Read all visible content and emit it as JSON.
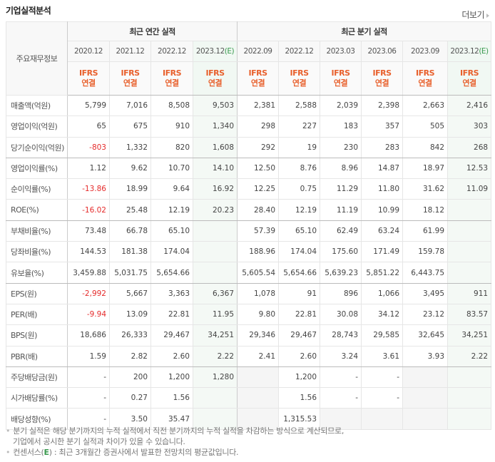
{
  "header": {
    "title": "기업실적분석",
    "more_label": "더보기"
  },
  "table": {
    "label_header": "주요재무정보",
    "groups": {
      "annual": "최근 연간 실적",
      "quarterly": "최근 분기 실적"
    },
    "annual_periods": [
      "2020.12",
      "2021.12",
      "2022.12",
      "2023.12"
    ],
    "quarterly_periods": [
      "2022.09",
      "2022.12",
      "2023.03",
      "2023.06",
      "2023.09",
      "2023.12"
    ],
    "estimate_mark": "(E)",
    "ifrs_line1": "IFRS",
    "ifrs_line2": "연결",
    "rows": [
      {
        "label": "매출액(억원)",
        "annual": [
          "5,799",
          "7,016",
          "8,508",
          "9,503"
        ],
        "quarterly": [
          "2,381",
          "2,588",
          "2,039",
          "2,398",
          "2,663",
          "2,416"
        ]
      },
      {
        "label": "영업이익(억원)",
        "annual": [
          "65",
          "675",
          "910",
          "1,340"
        ],
        "quarterly": [
          "298",
          "227",
          "183",
          "357",
          "505",
          "303"
        ]
      },
      {
        "label": "당기순이익(억원)",
        "annual": [
          "-803",
          "1,332",
          "820",
          "1,608"
        ],
        "quarterly": [
          "292",
          "19",
          "230",
          "283",
          "842",
          "268"
        ]
      },
      {
        "label": "영업이익률(%)",
        "annual": [
          "1.12",
          "9.62",
          "10.70",
          "14.10"
        ],
        "quarterly": [
          "12.50",
          "8.76",
          "8.96",
          "14.87",
          "18.97",
          "12.53"
        ]
      },
      {
        "label": "순이익률(%)",
        "annual": [
          "-13.86",
          "18.99",
          "9.64",
          "16.92"
        ],
        "quarterly": [
          "12.25",
          "0.75",
          "11.29",
          "11.80",
          "31.62",
          "11.09"
        ]
      },
      {
        "label": "ROE(%)",
        "annual": [
          "-16.02",
          "25.48",
          "12.19",
          "20.23"
        ],
        "quarterly": [
          "28.40",
          "12.19",
          "11.19",
          "10.99",
          "18.12",
          ""
        ]
      },
      {
        "label": "부채비율(%)",
        "annual": [
          "73.48",
          "66.78",
          "65.10",
          ""
        ],
        "quarterly": [
          "57.39",
          "65.10",
          "62.49",
          "63.24",
          "61.99",
          ""
        ]
      },
      {
        "label": "당좌비율(%)",
        "annual": [
          "144.53",
          "181.38",
          "174.04",
          ""
        ],
        "quarterly": [
          "188.96",
          "174.04",
          "175.60",
          "171.49",
          "159.78",
          ""
        ]
      },
      {
        "label": "유보율(%)",
        "annual": [
          "3,459.88",
          "5,031.75",
          "5,654.66",
          ""
        ],
        "quarterly": [
          "5,605.54",
          "5,654.66",
          "5,639.23",
          "5,851.22",
          "6,443.75",
          ""
        ]
      },
      {
        "label": "EPS(원)",
        "annual": [
          "-2,992",
          "5,667",
          "3,363",
          "6,367"
        ],
        "quarterly": [
          "1,078",
          "91",
          "896",
          "1,066",
          "3,495",
          "911"
        ]
      },
      {
        "label": "PER(배)",
        "annual": [
          "-9.94",
          "13.09",
          "22.81",
          "11.95"
        ],
        "quarterly": [
          "9.80",
          "22.81",
          "30.08",
          "34.12",
          "23.12",
          "83.57"
        ]
      },
      {
        "label": "BPS(원)",
        "annual": [
          "18,686",
          "26,333",
          "29,467",
          "34,251"
        ],
        "quarterly": [
          "29,346",
          "29,467",
          "28,743",
          "29,585",
          "32,645",
          "34,251"
        ]
      },
      {
        "label": "PBR(배)",
        "annual": [
          "1.59",
          "2.82",
          "2.60",
          "2.22"
        ],
        "quarterly": [
          "2.41",
          "2.60",
          "3.24",
          "3.61",
          "3.93",
          "2.22"
        ]
      },
      {
        "label": "주당배당금(원)",
        "annual": [
          "-",
          "200",
          "1,200",
          "1,280"
        ],
        "quarterly": [
          "",
          "1,200",
          "-",
          "-",
          "",
          ""
        ]
      },
      {
        "label": "시가배당률(%)",
        "annual": [
          "-",
          "0.27",
          "1.56",
          ""
        ],
        "quarterly": [
          "",
          "1.56",
          "-",
          "-",
          "",
          ""
        ]
      },
      {
        "label": "배당성향(%)",
        "annual": [
          "-",
          "3.50",
          "35.47",
          ""
        ],
        "quarterly": [
          "",
          "1,315.53",
          "",
          "",
          "",
          ""
        ]
      }
    ]
  },
  "notes": {
    "line1": "분기 실적은 해당 분기까지의 누적 실적에서 직전 분기까지의 누적 실적을 차감하는 방식으로 계산되므로,",
    "line2": "기업에서 공시한 분기 실적과 차이가 있을 수 있습니다.",
    "line3_prefix": "컨센서스(",
    "line3_e": "E",
    "line3_suffix": ") : 최근 3개월간 증권사에서 발표한 전망치의 평균값입니다."
  },
  "colors": {
    "negative": "#e52b2b",
    "ifrs": "#e8602c",
    "estimate_bg": "#f4f9f5",
    "estimate_mark": "#3a9a4f"
  }
}
